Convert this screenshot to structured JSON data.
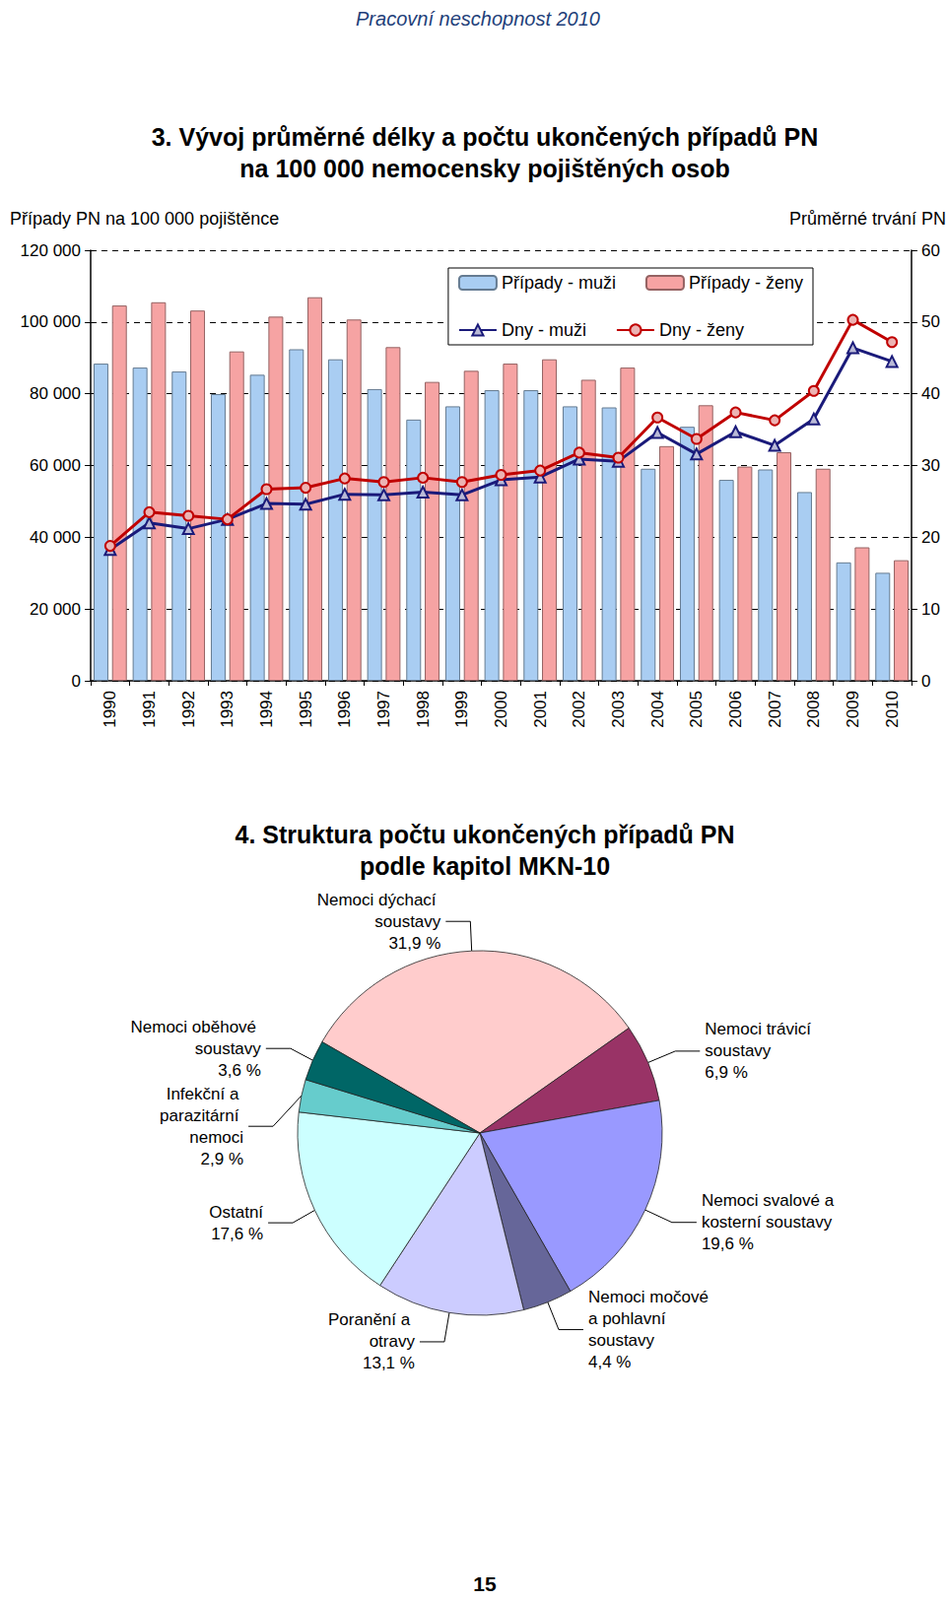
{
  "header": "Pracovní neschopnost 2010",
  "page_number": 15,
  "chart_data": [
    {
      "type": "bar",
      "title": "3. Vývoj průměrné délky a počtu ukončených případů PN\nna 100 000 nemocensky pojištěných osob",
      "ylabel": "Případy PN na 100 000 pojištěnce",
      "y2label": "Průměrné trvání PN",
      "categories": [
        "1990",
        "1991",
        "1992",
        "1993",
        "1994",
        "1995",
        "1996",
        "1997",
        "1998",
        "1999",
        "2000",
        "2001",
        "2002",
        "2003",
        "2004",
        "2005",
        "2006",
        "2007",
        "2008",
        "2009",
        "2010"
      ],
      "ylim": [
        0,
        120000
      ],
      "yticks": [
        0,
        {
          "value": 20000,
          "label": "20 000"
        },
        {
          "value": 40000,
          "label": "40 000"
        },
        {
          "value": 60000,
          "label": "60 000"
        },
        {
          "value": 80000,
          "label": "80 000"
        },
        {
          "value": 100000,
          "label": "100 000"
        },
        {
          "value": 120000,
          "label": "120 000"
        }
      ],
      "y2lim": [
        0,
        60
      ],
      "y2ticks": [
        0,
        10,
        20,
        30,
        40,
        50,
        60
      ],
      "grid": true,
      "legend": "top-right",
      "series": [
        {
          "name": "Případy - muži",
          "type": "bar",
          "color": "#a9cdf2",
          "values": [
            88400,
            87300,
            86200,
            79900,
            85300,
            92400,
            89600,
            81300,
            72800,
            76500,
            81000,
            81000,
            76500,
            76200,
            59100,
            70800,
            56000,
            58900,
            52600,
            33000,
            30100
          ]
        },
        {
          "name": "Případy - ženy",
          "type": "bar",
          "color": "#f6a3a3",
          "values": [
            104600,
            105500,
            103200,
            91800,
            101500,
            106900,
            100700,
            93000,
            83300,
            86400,
            88400,
            89600,
            83900,
            87300,
            65400,
            76800,
            59700,
            63700,
            59100,
            37200,
            33600
          ]
        },
        {
          "name": "Dny - muži",
          "type": "line",
          "axis": "y2",
          "color": "#1a1a7a",
          "marker": "triangle",
          "values": [
            18.3,
            22.0,
            21.2,
            22.5,
            24.7,
            24.6,
            26.0,
            25.9,
            26.3,
            25.9,
            28.0,
            28.4,
            30.9,
            30.6,
            34.6,
            31.6,
            34.7,
            32.8,
            36.5,
            46.4,
            44.5
          ]
        },
        {
          "name": "Dny - ženy",
          "type": "line",
          "axis": "y2",
          "color": "#c00000",
          "marker": "circle",
          "values": [
            18.8,
            23.5,
            23.0,
            22.5,
            26.7,
            26.9,
            28.2,
            27.7,
            28.3,
            27.7,
            28.7,
            29.3,
            31.8,
            31.1,
            36.7,
            33.7,
            37.4,
            36.3,
            40.4,
            50.3,
            47.2
          ]
        }
      ]
    },
    {
      "type": "pie",
      "title": "4. Struktura počtu ukončených případů PN\npodle kapitol MKN-10",
      "categories": [
        "Nemoci dýchací soustavy",
        "Nemoci trávicí soustavy",
        "Nemoci svalové a kosterní soustavy",
        "Nemoci močové a pohlavní soustavy",
        "Poranění a otravy",
        "Ostatní",
        "Infekční a parazitární nemoci",
        "Nemoci oběhové soustavy"
      ],
      "values": [
        31.9,
        6.9,
        19.6,
        4.4,
        13.1,
        17.6,
        2.9,
        3.6
      ],
      "value_labels": [
        "31,9 %",
        "6,9 %",
        "19,6 %",
        "4,4 %",
        "13,1 %",
        "17,6 %",
        "2,9 %",
        "3,6 %"
      ],
      "colors": [
        "#ffcccc",
        "#993366",
        "#9999ff",
        "#666699",
        "#ccccff",
        "#ccffff",
        "#66cccc",
        "#006666"
      ]
    }
  ]
}
